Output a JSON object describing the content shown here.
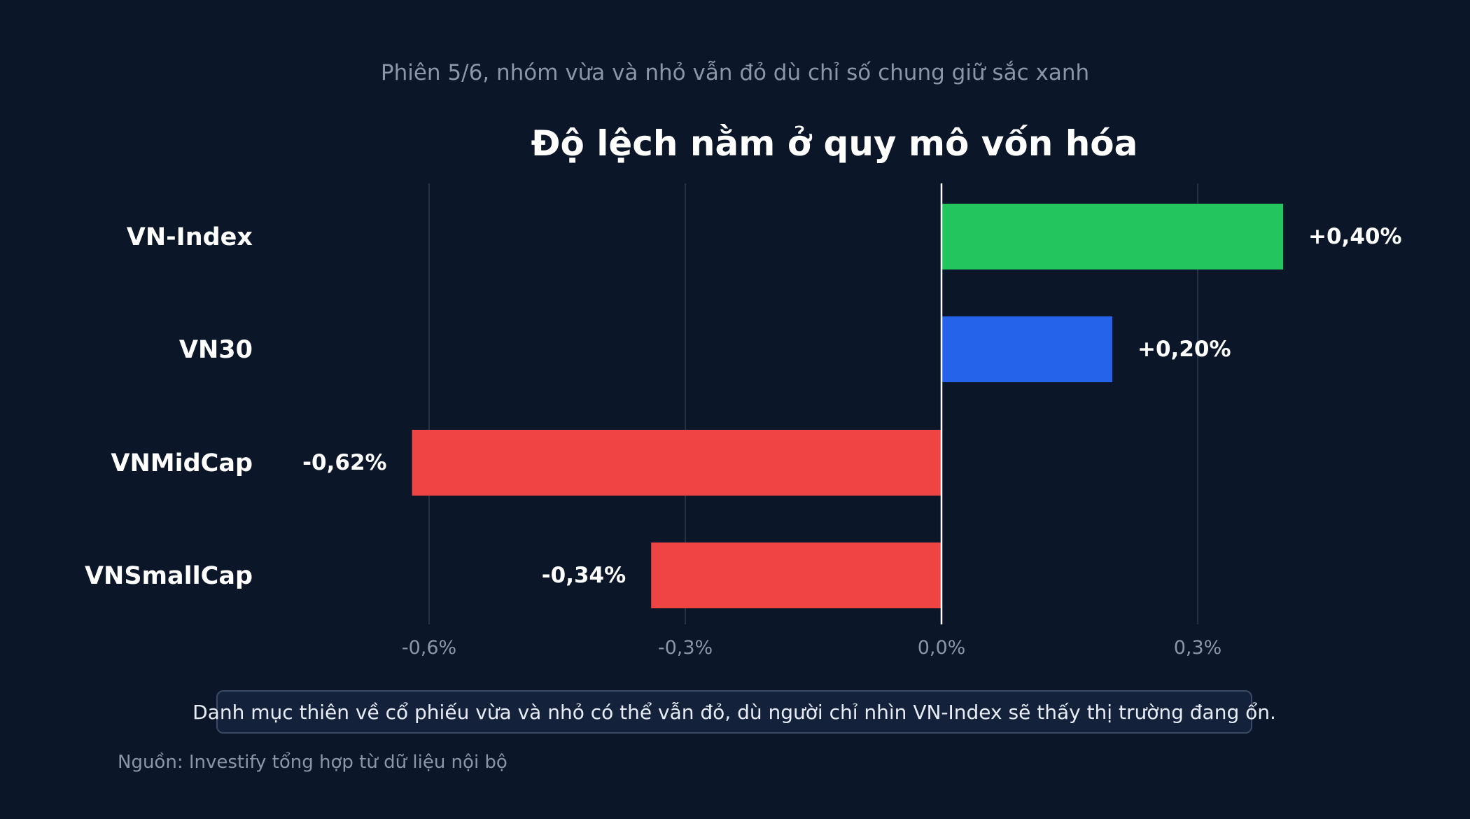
{
  "subtitle": "Phiên 5/6, nhóm vừa và nhỏ vẫn đỏ dù chỉ số chung giữ sắc xanh",
  "chart_data": {
    "type": "bar",
    "orientation": "horizontal",
    "title": "Độ lệch nằm ở quy mô vốn hóa",
    "categories": [
      "VN-Index",
      "VN30",
      "VNMidCap",
      "VNSmallCap"
    ],
    "values": [
      0.4,
      0.2,
      -0.62,
      -0.34
    ],
    "value_labels": [
      "+0,40%",
      "+0,20%",
      "-0,62%",
      "-0,34%"
    ],
    "bar_colors": [
      "#22c55e",
      "#2563eb",
      "#ef4444",
      "#ef4444"
    ],
    "x_ticks": [
      -0.6,
      -0.3,
      0.0,
      0.3
    ],
    "x_tick_labels": [
      "-0,6%",
      "-0,3%",
      "0,0%",
      "0,3%"
    ],
    "xlim": [
      -0.6,
      0.3
    ],
    "xlabel": "",
    "ylabel": "",
    "grid": "vertical"
  },
  "note": "Danh mục thiên về cổ phiếu vừa và nhỏ có thể vẫn đỏ, dù người chỉ nhìn VN-Index sẽ thấy thị trường đang ổn.",
  "source": "Nguồn: Investify tổng hợp từ dữ liệu nội bộ",
  "colors": {
    "background": "#0b1628",
    "gridline": "#243247",
    "zero_line": "#ffffff",
    "text_primary": "#ffffff",
    "text_muted": "#8b96a8"
  }
}
